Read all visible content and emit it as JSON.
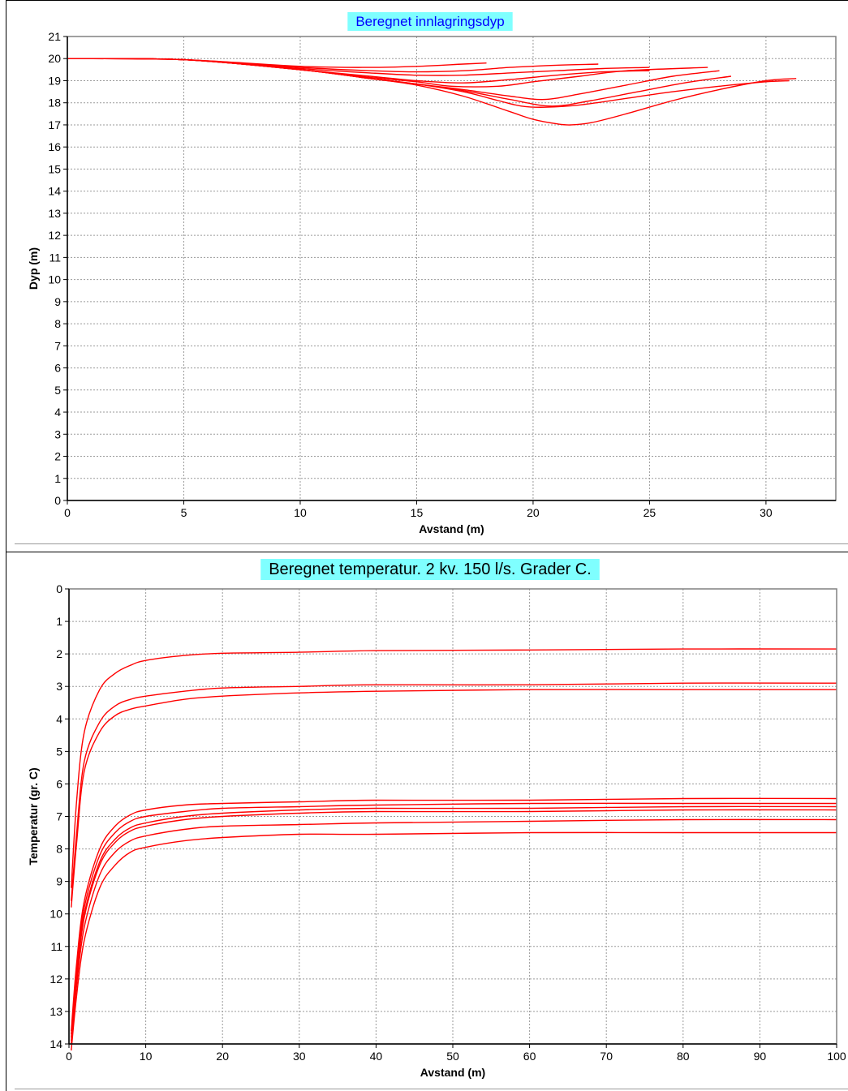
{
  "chart_data": [
    {
      "type": "line",
      "title": "Beregnet innlagringsdyp",
      "xlabel": "Avstand (m)",
      "ylabel": "Dyp (m)",
      "xlim": [
        0,
        33
      ],
      "ylim": [
        21,
        0
      ],
      "y_inverted": true,
      "xticks": [
        0,
        5,
        10,
        15,
        20,
        25,
        30
      ],
      "yticks": [
        0,
        1,
        2,
        3,
        4,
        5,
        6,
        7,
        8,
        9,
        10,
        11,
        12,
        13,
        14,
        15,
        16,
        17,
        18,
        19,
        20,
        21
      ],
      "grid": true,
      "title_background": "#7fffff",
      "title_color": "#0000ff",
      "series_color": "#ff0000",
      "series": [
        {
          "x": [
            0,
            5,
            10,
            13,
            15,
            17,
            19,
            20,
            21,
            21.6,
            22.5,
            24,
            26,
            28,
            30,
            31.3
          ],
          "y": [
            20,
            19.95,
            19.5,
            19.1,
            18.8,
            18.3,
            17.6,
            17.25,
            17.05,
            17.0,
            17.1,
            17.5,
            18.1,
            18.6,
            19.0,
            19.1
          ]
        },
        {
          "x": [
            0,
            5,
            10,
            13,
            15,
            17,
            18.5,
            19.5,
            20.5,
            22,
            24,
            26,
            28,
            30,
            31
          ],
          "y": [
            20,
            19.95,
            19.5,
            19.1,
            18.85,
            18.5,
            18.1,
            17.85,
            17.8,
            17.9,
            18.2,
            18.5,
            18.75,
            18.95,
            19.0
          ]
        },
        {
          "x": [
            0,
            5,
            10,
            13,
            15,
            17,
            19,
            20.8,
            22.5,
            24.5,
            26.5,
            28.5
          ],
          "y": [
            20,
            19.95,
            19.5,
            19.1,
            18.85,
            18.55,
            18.15,
            17.85,
            18.1,
            18.5,
            18.9,
            19.2
          ]
        },
        {
          "x": [
            0,
            5,
            10,
            13,
            15,
            17,
            19,
            20.5,
            22,
            24,
            26,
            28
          ],
          "y": [
            20,
            19.95,
            19.5,
            19.1,
            18.85,
            18.6,
            18.3,
            18.15,
            18.4,
            18.8,
            19.2,
            19.45
          ]
        },
        {
          "x": [
            0,
            5,
            10,
            13,
            15,
            16.5,
            18.5,
            20,
            22,
            24,
            27.5
          ],
          "y": [
            20,
            19.95,
            19.5,
            19.15,
            18.95,
            18.75,
            18.75,
            18.95,
            19.2,
            19.45,
            19.6
          ]
        },
        {
          "x": [
            0,
            5,
            10,
            13,
            15,
            17,
            19,
            21,
            23,
            25
          ],
          "y": [
            20,
            19.95,
            19.5,
            19.2,
            19.0,
            18.9,
            19.05,
            19.25,
            19.4,
            19.45
          ]
        },
        {
          "x": [
            0,
            5,
            10,
            13,
            15,
            17,
            19,
            21,
            23,
            25
          ],
          "y": [
            20,
            19.95,
            19.55,
            19.35,
            19.25,
            19.25,
            19.35,
            19.45,
            19.55,
            19.6
          ]
        },
        {
          "x": [
            0,
            5,
            10,
            13,
            15,
            17,
            19,
            21,
            22.8
          ],
          "y": [
            20,
            19.95,
            19.6,
            19.45,
            19.4,
            19.45,
            19.6,
            19.7,
            19.75
          ]
        },
        {
          "x": [
            0,
            5,
            10,
            13,
            15,
            17,
            18
          ],
          "y": [
            20,
            19.95,
            19.65,
            19.6,
            19.65,
            19.75,
            19.8
          ]
        }
      ]
    },
    {
      "type": "line",
      "title": "Beregnet temperatur. 2 kv. 150 l/s. Grader C.",
      "xlabel": "Avstand (m)",
      "ylabel": "Temperatur (gr. C)",
      "xlim": [
        0,
        100
      ],
      "ylim": [
        0,
        14
      ],
      "xticks": [
        0,
        10,
        20,
        30,
        40,
        50,
        60,
        70,
        80,
        90,
        100
      ],
      "yticks": [
        0,
        1,
        2,
        3,
        4,
        5,
        6,
        7,
        8,
        9,
        10,
        11,
        12,
        13,
        14
      ],
      "grid": true,
      "title_background": "#7fffff",
      "title_color": "#000000",
      "series_color": "#ff0000",
      "series": [
        {
          "x": [
            0.3,
            1,
            2,
            4,
            6,
            8,
            10,
            15,
            20,
            30,
            40,
            60,
            80,
            100
          ],
          "y": [
            14.2,
            12.5,
            10.8,
            9.2,
            8.5,
            8.1,
            7.95,
            7.75,
            7.65,
            7.55,
            7.55,
            7.5,
            7.5,
            7.5
          ]
        },
        {
          "x": [
            0.3,
            1,
            2,
            4,
            6,
            8,
            10,
            15,
            20,
            30,
            40,
            60,
            80,
            100
          ],
          "y": [
            14.0,
            12.2,
            10.4,
            8.8,
            8.1,
            7.75,
            7.6,
            7.4,
            7.3,
            7.25,
            7.2,
            7.15,
            7.1,
            7.1
          ]
        },
        {
          "x": [
            0.3,
            1,
            2,
            4,
            6,
            8,
            10,
            15,
            20,
            30,
            40,
            60,
            80,
            100
          ],
          "y": [
            13.9,
            12.0,
            10.1,
            8.5,
            7.8,
            7.45,
            7.3,
            7.1,
            7.0,
            6.9,
            6.85,
            6.85,
            6.8,
            6.8
          ]
        },
        {
          "x": [
            0.3,
            1,
            2,
            4,
            6,
            8,
            10,
            15,
            20,
            30,
            40,
            60,
            80,
            100
          ],
          "y": [
            13.8,
            11.9,
            10.0,
            8.4,
            7.7,
            7.35,
            7.2,
            7.0,
            6.9,
            6.8,
            6.75,
            6.75,
            6.7,
            6.7
          ]
        },
        {
          "x": [
            0.3,
            1,
            2,
            4,
            6,
            8,
            10,
            15,
            20,
            30,
            40,
            60,
            80,
            100
          ],
          "y": [
            13.7,
            11.7,
            9.8,
            8.2,
            7.5,
            7.15,
            7.0,
            6.85,
            6.75,
            6.7,
            6.65,
            6.6,
            6.6,
            6.6
          ]
        },
        {
          "x": [
            0.3,
            1,
            2,
            4,
            6,
            8,
            10,
            15,
            20,
            30,
            40,
            60,
            80,
            100
          ],
          "y": [
            13.6,
            11.5,
            9.6,
            8.0,
            7.3,
            6.95,
            6.8,
            6.65,
            6.6,
            6.55,
            6.5,
            6.5,
            6.45,
            6.45
          ]
        },
        {
          "x": [
            0.3,
            1,
            2,
            4,
            6,
            8,
            10,
            15,
            20,
            30,
            40,
            60,
            80,
            100
          ],
          "y": [
            9.8,
            7.8,
            5.6,
            4.4,
            3.9,
            3.7,
            3.6,
            3.4,
            3.3,
            3.2,
            3.15,
            3.1,
            3.1,
            3.1
          ]
        },
        {
          "x": [
            0.3,
            1,
            2,
            4,
            6,
            8,
            10,
            15,
            20,
            30,
            40,
            60,
            80,
            100
          ],
          "y": [
            9.6,
            7.5,
            5.3,
            4.1,
            3.6,
            3.4,
            3.3,
            3.15,
            3.05,
            3.0,
            2.95,
            2.95,
            2.9,
            2.9
          ]
        },
        {
          "x": [
            0.3,
            1,
            2,
            4,
            6,
            8,
            10,
            15,
            20,
            30,
            40,
            60,
            80,
            100
          ],
          "y": [
            9.2,
            6.5,
            4.4,
            3.1,
            2.6,
            2.35,
            2.2,
            2.05,
            1.98,
            1.95,
            1.9,
            1.88,
            1.85,
            1.85
          ]
        }
      ]
    }
  ]
}
